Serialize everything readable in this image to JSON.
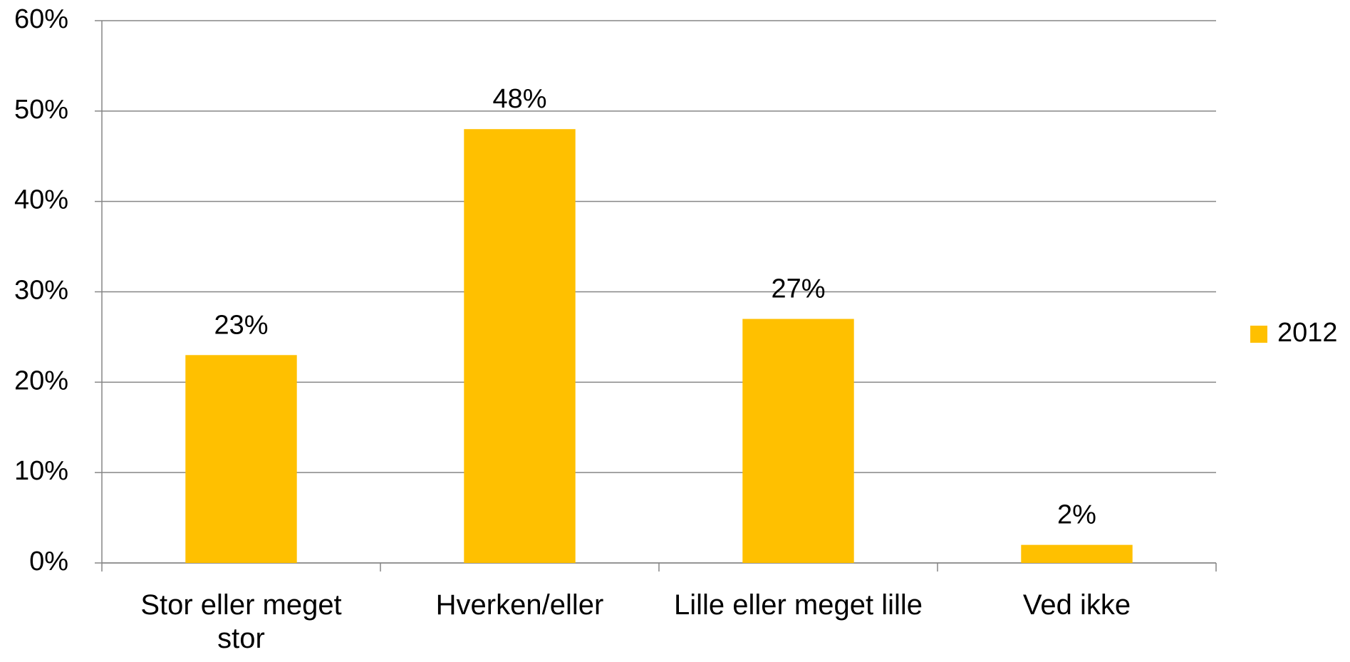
{
  "chart_data": {
    "type": "bar",
    "categories": [
      "Stor eller meget stor",
      "Hverken/eller",
      "Lille eller meget lille",
      "Ved ikke"
    ],
    "series": [
      {
        "name": "2012",
        "color": "#FFC000",
        "values": [
          23,
          48,
          27,
          2
        ],
        "value_labels": [
          "23%",
          "48%",
          "27%",
          "2%"
        ]
      }
    ],
    "ylim": [
      0,
      60
    ],
    "yticks": [
      {
        "value": 0,
        "label": "0%"
      },
      {
        "value": 10,
        "label": "10%"
      },
      {
        "value": 20,
        "label": "20%"
      },
      {
        "value": 30,
        "label": "30%"
      },
      {
        "value": 40,
        "label": "40%"
      },
      {
        "value": 50,
        "label": "50%"
      },
      {
        "value": 60,
        "label": "60%"
      }
    ],
    "grid": true,
    "legend": "right"
  }
}
